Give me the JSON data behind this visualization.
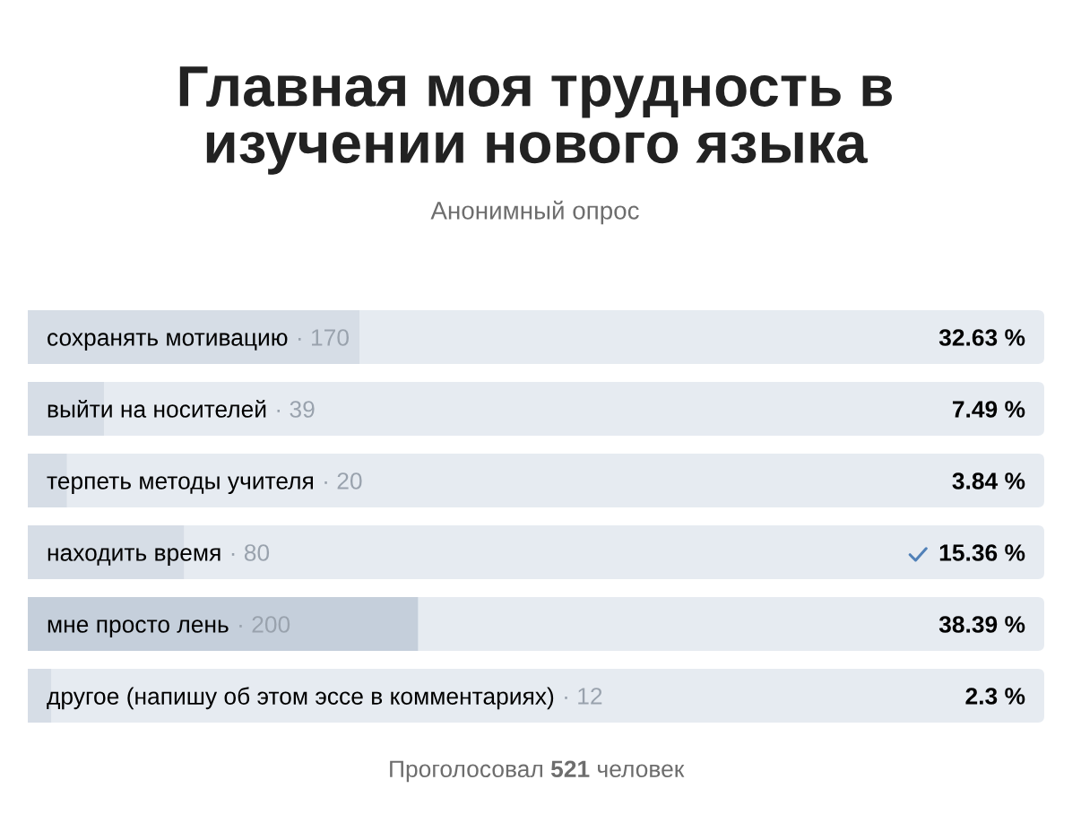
{
  "chart_data": {
    "type": "bar",
    "orientation": "horizontal",
    "title": "Главная моя трудность в\nизучении нового языка",
    "subtitle": "Анонимный опрос",
    "categories": [
      "сохранять мотивацию",
      "выйти на носителей",
      "терпеть методы учителя",
      "находить время",
      "мне просто лень",
      "другое (напишу об этом эссе в комментариях)"
    ],
    "values": [
      32.63,
      7.49,
      3.84,
      15.36,
      38.39,
      2.3
    ],
    "colors": [
      "#d6dde6",
      "#d6dde6",
      "#d6dde6",
      "#d6dde6",
      "#c5cfdb",
      "#d6dde6"
    ],
    "value_labels": [
      "32.63 %",
      "7.49 %",
      "3.84 %",
      "15.36 %",
      "38.39 %",
      "2.3 %"
    ],
    "xlim": [
      0,
      100
    ],
    "tick_labels": "y",
    "annotations": [
      "· 170",
      "· 39",
      "· 20",
      "· 80",
      "· 200",
      "· 12",
      "Проголосовал 521 человек"
    ]
  }
}
